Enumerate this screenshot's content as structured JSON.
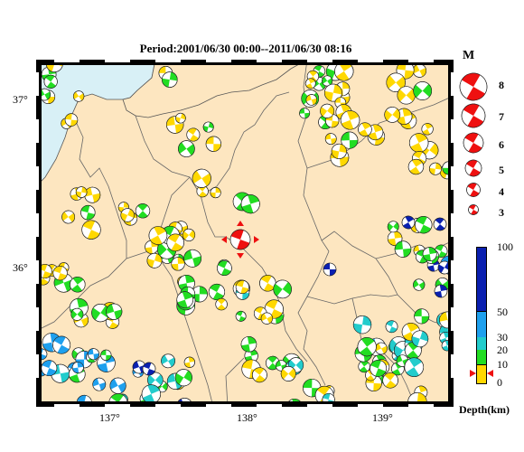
{
  "title": "Period:2001/06/30 00:00--2011/06/30 08:16",
  "axes": {
    "y_labels": [
      "37°",
      "36°"
    ],
    "x_labels": [
      "137°",
      "138°",
      "139°"
    ]
  },
  "legend": {
    "magnitude_title": "M",
    "magnitudes": [
      "8",
      "7",
      "6",
      "5",
      "4",
      "3"
    ],
    "depth_title": "Depth(km)",
    "depth_ticks": [
      "100",
      "50",
      "30",
      "20",
      "10",
      "0"
    ]
  },
  "colors": {
    "land": "#fde6c0",
    "sea": "#d8f0f6",
    "depth_0_10": "#ffd800",
    "depth_10_20": "#22dd22",
    "depth_20_30": "#22cccc",
    "depth_30_50": "#1ea0ee",
    "depth_50_100": "#0a20b0",
    "main_event": "#ee1010"
  },
  "main_event": {
    "lon": 137.95,
    "lat": 36.17,
    "depth_km": 5
  }
}
